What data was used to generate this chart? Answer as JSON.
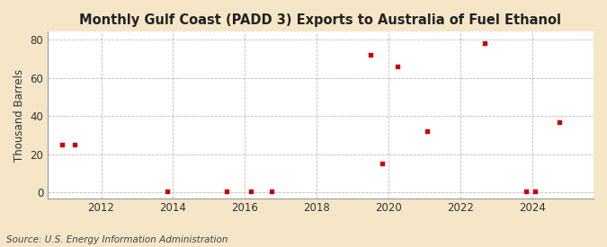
{
  "title": "Monthly Gulf Coast (PADD 3) Exports to Australia of Fuel Ethanol",
  "ylabel": "Thousand Barrels",
  "source": "Source: U.S. Energy Information Administration",
  "background_color": "#f5e6c8",
  "plot_background_color": "#ffffff",
  "grid_color": "#aaaaaa",
  "point_color": "#cc0000",
  "xlim": [
    2010.5,
    2025.7
  ],
  "ylim": [
    -3,
    84
  ],
  "yticks": [
    0,
    20,
    40,
    60,
    80
  ],
  "xticks": [
    2012,
    2014,
    2016,
    2018,
    2020,
    2022,
    2024
  ],
  "data_points": [
    [
      2010.92,
      25
    ],
    [
      2011.25,
      25
    ],
    [
      2013.83,
      0.5
    ],
    [
      2015.5,
      0.5
    ],
    [
      2016.17,
      0.5
    ],
    [
      2016.75,
      0.5
    ],
    [
      2019.5,
      72
    ],
    [
      2019.83,
      15
    ],
    [
      2020.25,
      66
    ],
    [
      2021.08,
      32
    ],
    [
      2022.67,
      78
    ],
    [
      2023.83,
      0.5
    ],
    [
      2024.08,
      0.5
    ],
    [
      2024.75,
      37
    ]
  ],
  "title_fontsize": 10.5,
  "label_fontsize": 8.5,
  "tick_fontsize": 8.5,
  "source_fontsize": 7.5
}
